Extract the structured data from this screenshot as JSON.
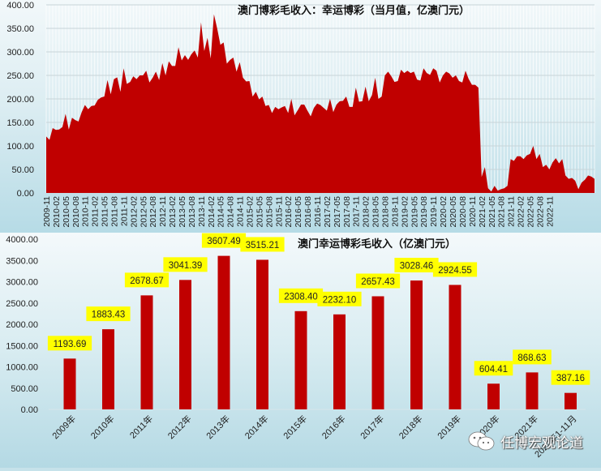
{
  "top_chart": {
    "title": "澳门博彩毛收入：幸运博彩（当月值，亿澳门元）",
    "y_ticks": [
      "400.00",
      "350.00",
      "300.00",
      "250.00",
      "200.00",
      "150.00",
      "100.00",
      "50.00",
      "0.00"
    ],
    "x_tick_labels": [
      "2009-11",
      "2010-02",
      "2010-05",
      "2010-08",
      "2010-11",
      "2011-02",
      "2011-05",
      "2011-08",
      "2011-11",
      "2012-02",
      "2012-05",
      "2012-08",
      "2012-11",
      "2013-02",
      "2013-05",
      "2013-08",
      "2013-11",
      "2014-02",
      "2014-05",
      "2014-08",
      "2014-11",
      "2015-02",
      "2015-05",
      "2015-08",
      "2015-11",
      "2016-02",
      "2016-05",
      "2016-08",
      "2016-11",
      "2017-02",
      "2017-05",
      "2017-08",
      "2017-11",
      "2018-02",
      "2018-05",
      "2018-08",
      "2018-11",
      "2019-02",
      "2019-05",
      "2019-08",
      "2019-11",
      "2020-02",
      "2020-05",
      "2020-08",
      "2020-11",
      "2021-02",
      "2021-05",
      "2021-08",
      "2021-11",
      "2022-02",
      "2022-05",
      "2022-08",
      "2022-11"
    ]
  },
  "bottom_chart": {
    "title": "澳门幸运博彩毛收入（亿澳门元）",
    "y_ticks": [
      "4000.00",
      "3500.00",
      "3000.00",
      "2500.00",
      "2000.00",
      "1500.00",
      "1000.00",
      "500.00",
      "0.00"
    ]
  },
  "colors": {
    "series": "#c00000",
    "label_bg": "#ffff00"
  },
  "watermark": {
    "text": "任博宏观论道",
    "icon": "wechat-icon"
  },
  "chart_data": [
    {
      "type": "area",
      "title": "澳门博彩毛收入：幸运博彩（当月值，亿澳门元）",
      "xlabel": "",
      "ylabel": "",
      "ylim": [
        0,
        400
      ],
      "grid": true,
      "legend": "none",
      "x_start": "2009-11",
      "x_end": "2022-11",
      "frequency": "monthly",
      "series": [
        {
          "name": "幸运博彩当月值",
          "values": [
            120,
            113,
            138,
            134,
            135,
            140,
            168,
            135,
            160,
            155,
            152,
            172,
            187,
            178,
            185,
            186,
            198,
            203,
            205,
            240,
            210,
            242,
            246,
            215,
            265,
            232,
            236,
            248,
            242,
            250,
            250,
            260,
            235,
            245,
            258,
            240,
            276,
            250,
            280,
            270,
            270,
            310,
            282,
            293,
            283,
            295,
            303,
            288,
            363,
            302,
            330,
            286,
            380,
            350,
            315,
            320,
            275,
            283,
            288,
            258,
            278,
            245,
            237,
            238,
            205,
            215,
            199,
            205,
            185,
            187,
            170,
            183,
            178,
            182,
            185,
            170,
            200,
            165,
            176,
            188,
            188,
            175,
            163,
            181,
            190,
            187,
            181,
            175,
            200,
            172,
            188,
            195,
            196,
            205,
            183,
            183,
            224,
            194,
            195,
            226,
            195,
            208,
            245,
            200,
            205,
            250,
            258,
            248,
            236,
            238,
            262,
            255,
            260,
            255,
            258,
            241,
            239,
            265,
            255,
            251,
            265,
            260,
            235,
            250,
            258,
            254,
            245,
            250,
            238,
            235,
            260,
            242,
            230,
            230,
            224,
            34,
            55,
            10,
            3,
            15,
            5,
            8,
            10,
            15,
            72,
            68,
            78,
            78,
            72,
            80,
            83,
            100,
            72,
            83,
            55,
            60,
            50,
            65,
            74,
            63,
            72,
            37,
            30,
            32,
            26,
            8,
            22,
            28,
            37,
            35,
            30
          ]
        }
      ]
    },
    {
      "type": "bar",
      "title": "澳门幸运博彩毛收入（亿澳门元）",
      "categories": [
        "2009年",
        "2010年",
        "2011年",
        "2012年",
        "2013年",
        "2014年",
        "2015年",
        "2016年",
        "2017年",
        "2018年",
        "2019年",
        "2020年",
        "2021年",
        "2022年1-11月"
      ],
      "values": [
        1193.69,
        1883.43,
        2678.67,
        3041.39,
        3607.49,
        3515.21,
        2308.4,
        2232.1,
        2657.43,
        3028.46,
        2924.55,
        604.41,
        868.63,
        387.16
      ],
      "data_labels": [
        "1193.69",
        "1883.43",
        "2678.67",
        "3041.39",
        "3607.49",
        "3515.21",
        "2308.40",
        "2232.10",
        "2657.43",
        "3028.46",
        "2924.55",
        "604.41",
        "868.63",
        "387.16"
      ],
      "xlabel": "",
      "ylabel": "",
      "ylim": [
        0,
        4000
      ],
      "grid": false,
      "legend": "none"
    }
  ]
}
